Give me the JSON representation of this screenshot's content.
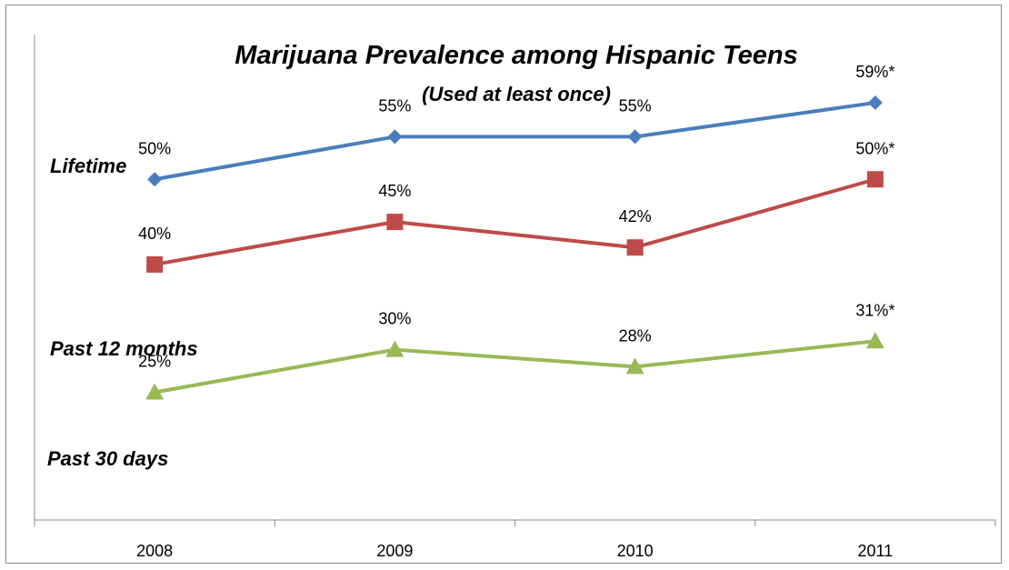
{
  "chart_data": {
    "type": "line",
    "title": "Marijuana Prevalence among Hispanic Teens",
    "subtitle": "(Used at least once)",
    "categories": [
      "2008",
      "2009",
      "2010",
      "2011"
    ],
    "series": [
      {
        "name": "Lifetime",
        "values": [
          50,
          55,
          55,
          59
        ],
        "labels": [
          "50%",
          "55%",
          "55%",
          "59%*"
        ],
        "color": "#4a7ebb",
        "marker": "diamond"
      },
      {
        "name": "Past 12 months",
        "values": [
          40,
          45,
          42,
          50
        ],
        "labels": [
          "40%",
          "45%",
          "42%",
          "50%*"
        ],
        "color": "#be4b48",
        "marker": "square"
      },
      {
        "name": "Past 30 days",
        "values": [
          25,
          30,
          28,
          31
        ],
        "labels": [
          "25%",
          "30%",
          "28%",
          "31%*"
        ],
        "color": "#98b954",
        "marker": "triangle"
      }
    ],
    "ylim": [
      10,
      67
    ],
    "grid": false,
    "legend": "left, inline labels"
  }
}
